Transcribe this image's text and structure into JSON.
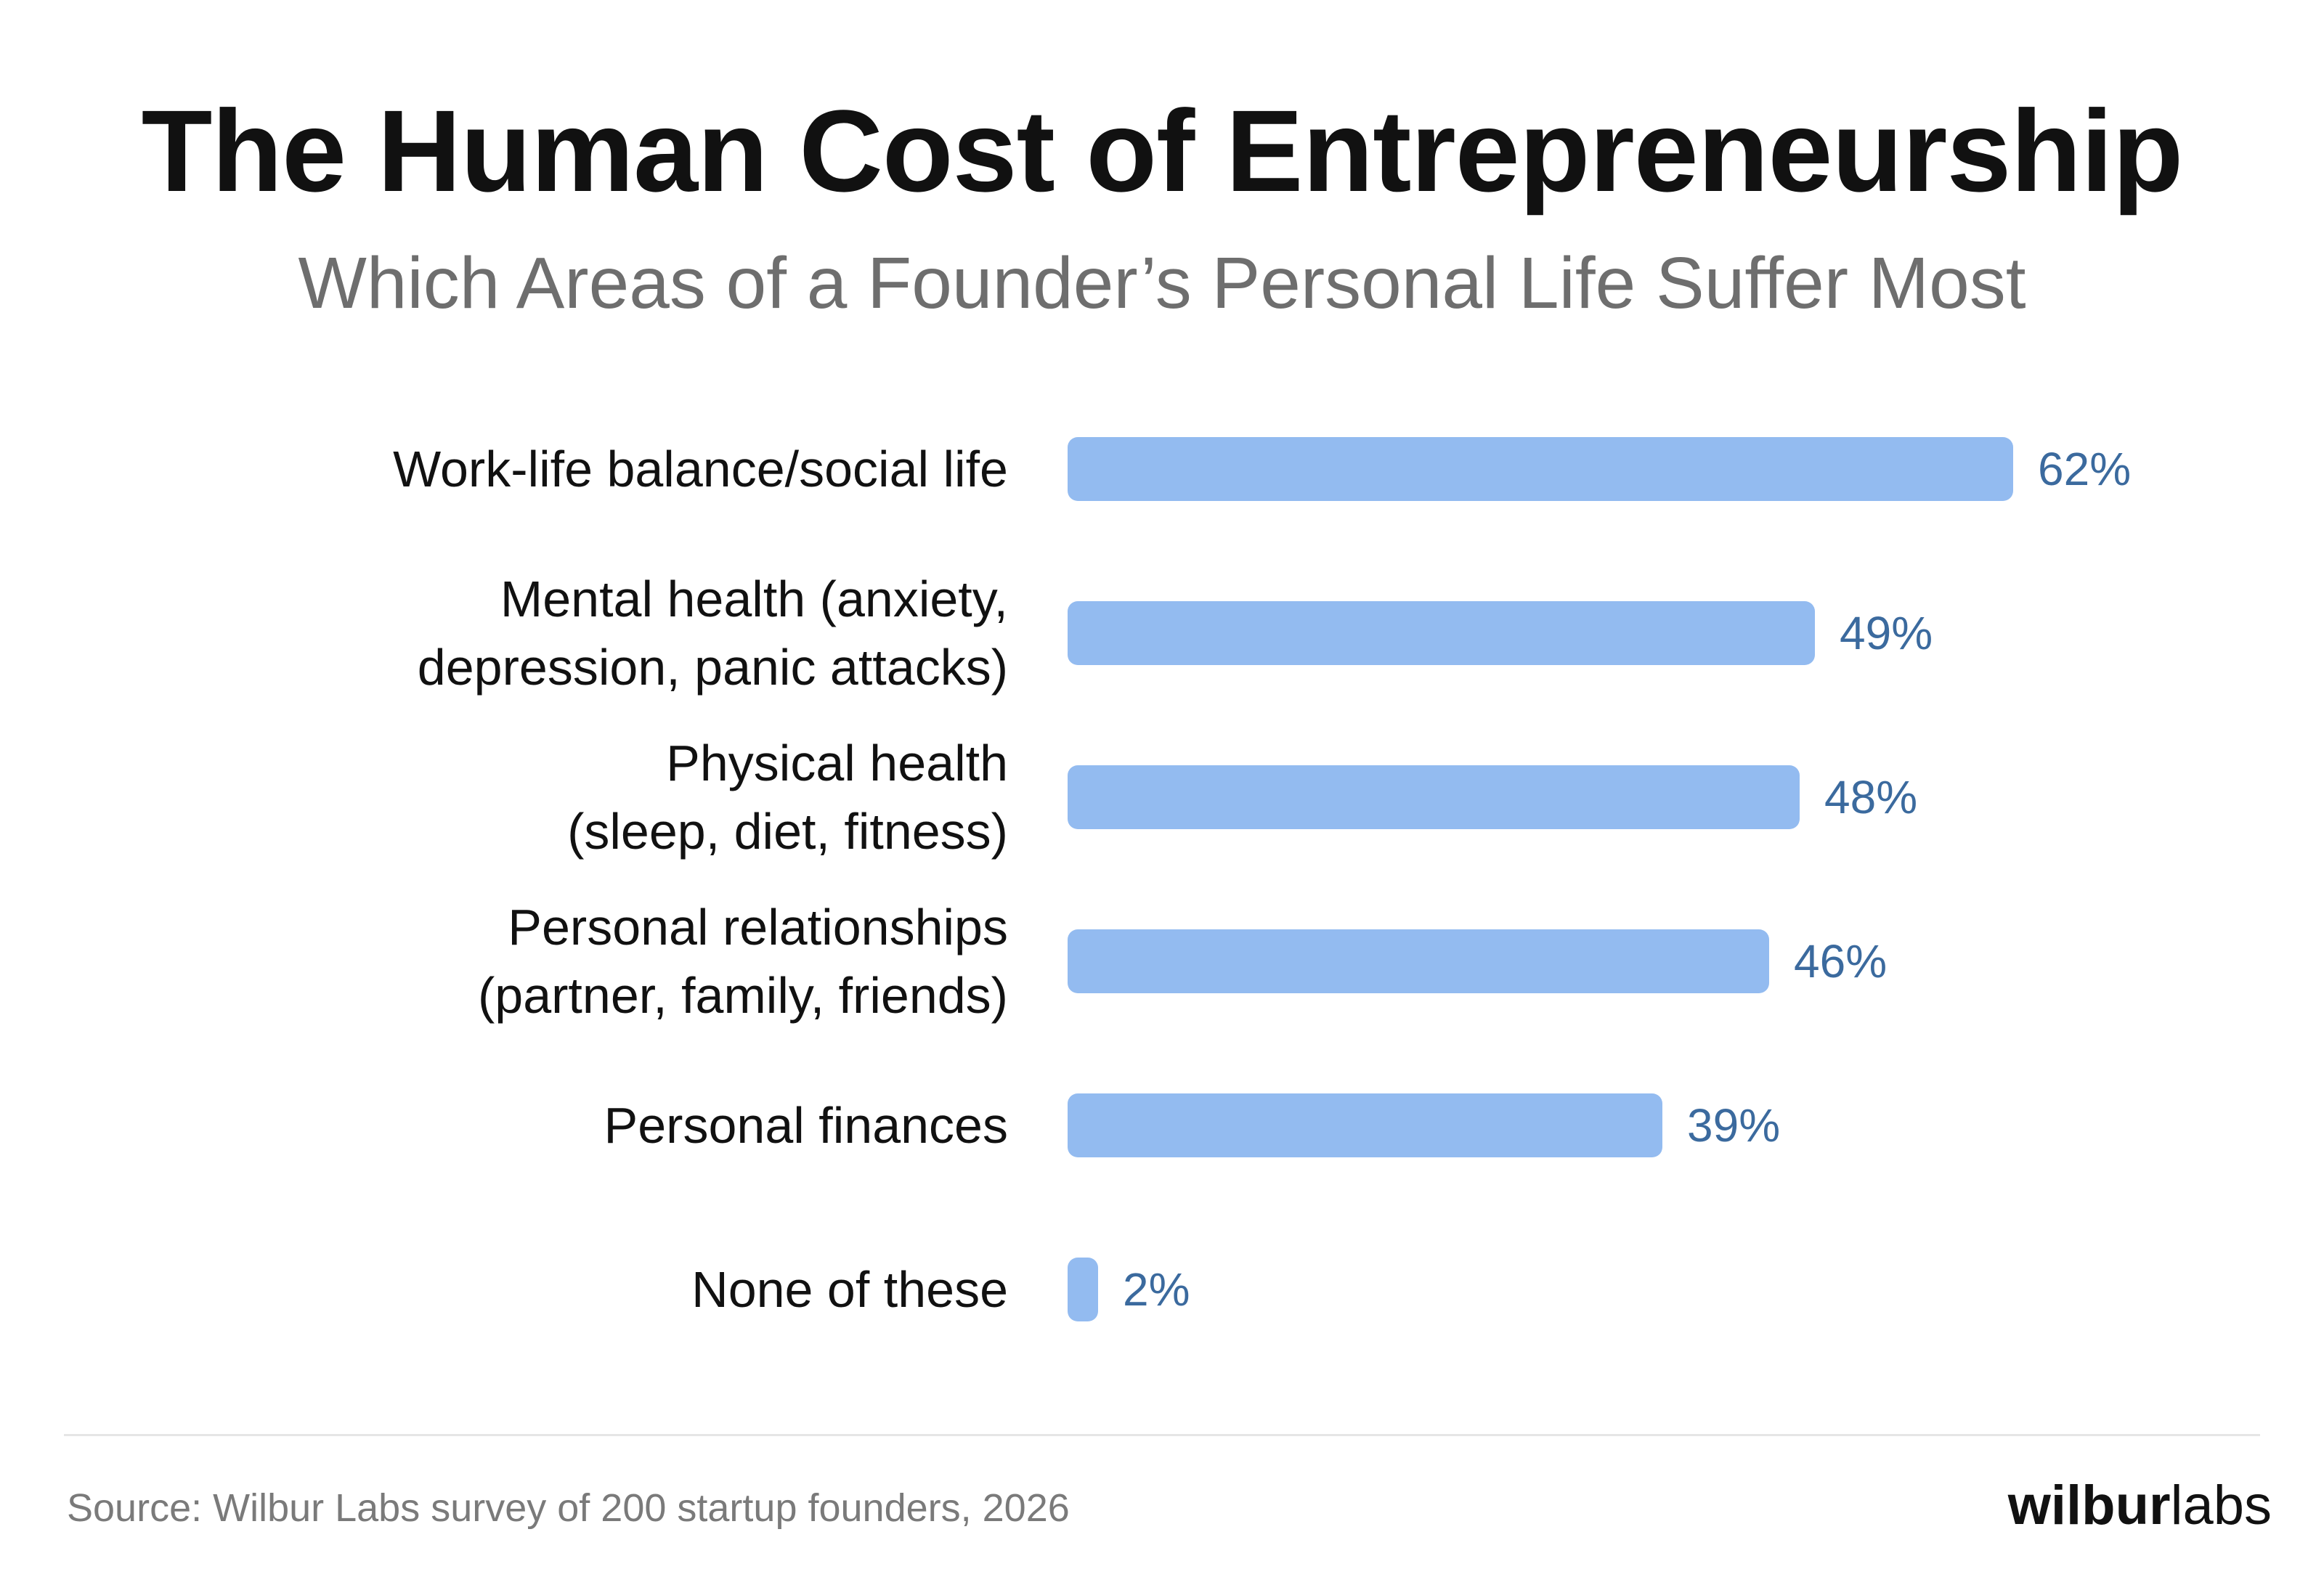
{
  "header": {
    "title": "The Human Cost of Entrepreneurship",
    "subtitle": "Which Areas of a Founder’s Personal Life Suffer Most"
  },
  "footer": {
    "source": "Source: Wilbur Labs survey of 200 startup founders, 2026",
    "logo_bold": "wilbur",
    "logo_light": "labs"
  },
  "colors": {
    "bar": "#93bbf0",
    "value_text": "#3b6a9e",
    "title": "#111111",
    "subtitle": "#6e6e6e"
  },
  "chart_data": {
    "type": "bar",
    "orientation": "horizontal",
    "title": "The Human Cost of Entrepreneurship",
    "subtitle": "Which Areas of a Founder’s Personal Life Suffer Most",
    "categories": [
      [
        "Work-life balance/social life"
      ],
      [
        "Mental health (anxiety,",
        "depression, panic attacks)"
      ],
      [
        "Physical health",
        "(sleep, diet, fitness)"
      ],
      [
        "Personal relationships",
        "(partner, family, friends)"
      ],
      [
        "Personal finances"
      ],
      [
        "None of these"
      ]
    ],
    "values": [
      62,
      49,
      48,
      46,
      39,
      2
    ],
    "value_labels": [
      "62%",
      "49%",
      "48%",
      "46%",
      "39%",
      "2%"
    ],
    "unit": "%",
    "xlim": [
      0,
      62
    ],
    "grid": false,
    "legend": "none",
    "axes_visible": false
  }
}
